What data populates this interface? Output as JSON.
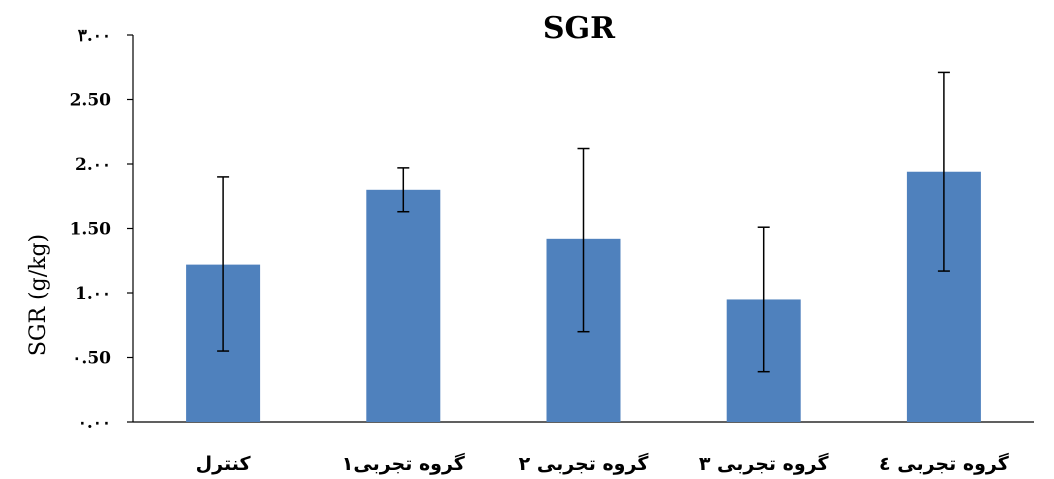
{
  "chart_data": {
    "type": "bar",
    "title": "SGR",
    "xlabel": "",
    "ylabel": "SGR (g/kg)",
    "ylim": [
      0,
      3
    ],
    "yticks": [
      0,
      0.5,
      1.0,
      1.5,
      2.0,
      2.5,
      3.0
    ],
    "ytick_labels": [
      "٠.٠٠",
      "٠.50",
      "1.٠٠",
      "1.50",
      "2.٠٠",
      "2.50",
      "٣.٠٠"
    ],
    "categories": [
      "کنترل",
      "گروه تجربی۱",
      "گروه تجربی ۲",
      "گروه تجربی ۳",
      "گروه تجربی ٤"
    ],
    "values": [
      1.22,
      1.8,
      1.42,
      0.95,
      1.94
    ],
    "error_upper": [
      1.9,
      1.97,
      2.12,
      1.51,
      2.71
    ],
    "error_lower": [
      0.55,
      1.63,
      0.7,
      0.39,
      1.17
    ],
    "grid": false,
    "legend": "none",
    "bar_color": "#4f81bd"
  }
}
